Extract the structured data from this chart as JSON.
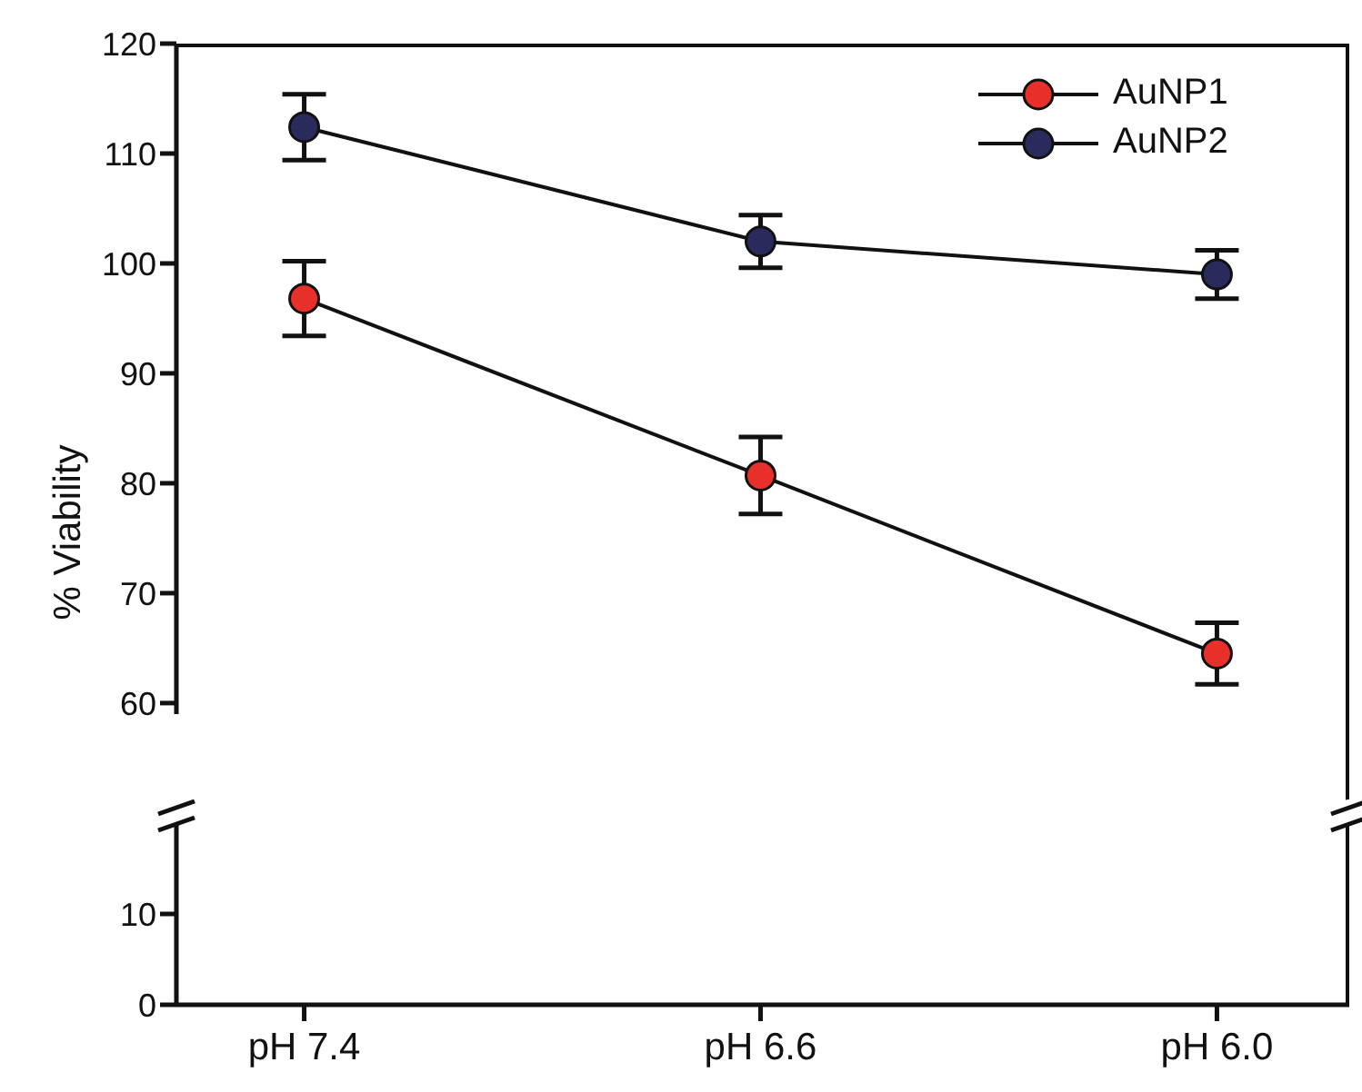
{
  "chart_data": [
    {
      "type": "line",
      "ylabel": "% Viability",
      "tick_labels": "y",
      "ylim": [
        59,
        120
      ],
      "yticks": [
        60,
        70,
        80,
        90,
        100,
        110,
        120
      ],
      "legend": "top right",
      "marker": "circle",
      "line_style": "solid",
      "grid": false,
      "series": [
        {
          "name": "AuNP1",
          "color": "#e8302a",
          "values": [
            96.8,
            80.7,
            64.5
          ],
          "errors": [
            3.4,
            3.5,
            2.8
          ]
        },
        {
          "name": "AuNP2",
          "color": "#2b2a5c",
          "values": [
            112.4,
            102,
            99
          ],
          "errors": [
            3,
            2.4,
            2.2
          ]
        }
      ]
    },
    {
      "type": "line",
      "categories": [
        "pH 7.4",
        "pH 6.6",
        "pH 6.0"
      ],
      "ylim": [
        0,
        20
      ],
      "yticks": [
        0,
        10
      ],
      "grid": false
    }
  ]
}
